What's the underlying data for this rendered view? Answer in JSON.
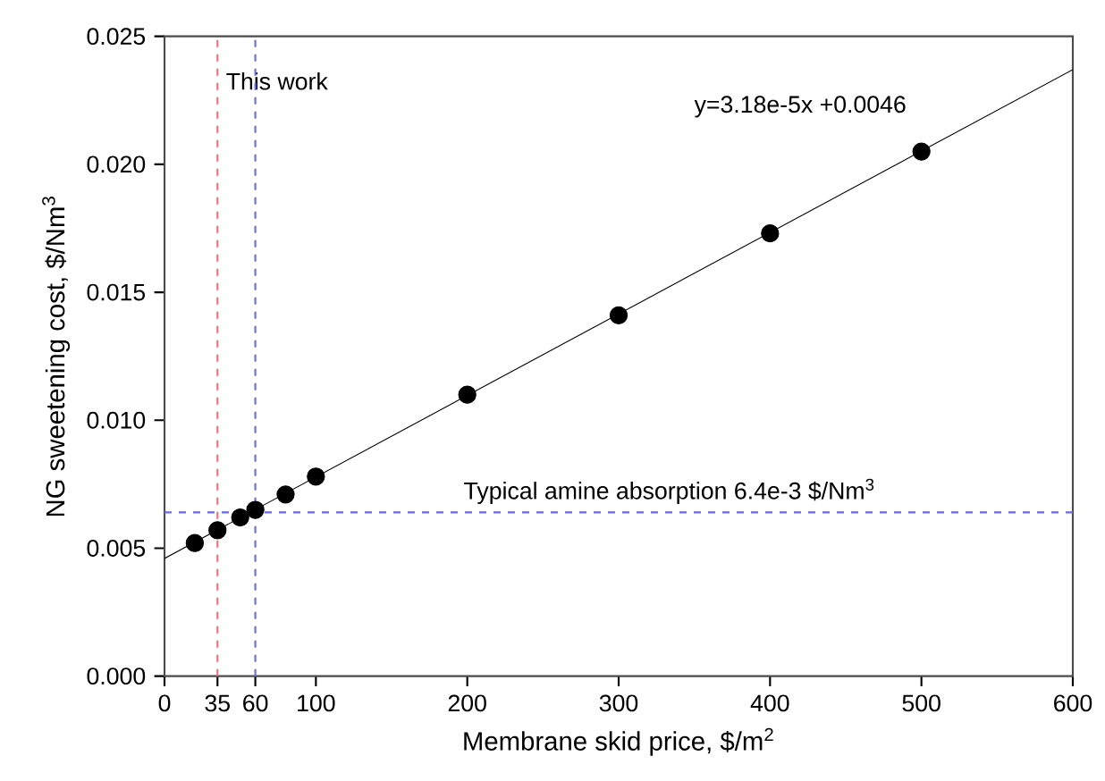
{
  "chart_data": {
    "type": "scatter",
    "xlabel": "Membrane skid price, $/m$^{2}$",
    "ylabel": "NG sweetening cost, $/Nm$^{3}$",
    "xlim": [
      0,
      600
    ],
    "ylim": [
      0,
      0.025
    ],
    "xticks": [
      0,
      35,
      60,
      100,
      200,
      300,
      400,
      500,
      600
    ],
    "yticks": [
      {
        "value": 0,
        "label": "0.000"
      },
      {
        "value": 0.005,
        "label": "0.005"
      },
      {
        "value": 0.01,
        "label": "0.010"
      },
      {
        "value": 0.015,
        "label": "0.015"
      },
      {
        "value": 0.02,
        "label": "0.020"
      },
      {
        "value": 0.025,
        "label": "0.025"
      }
    ],
    "marker": "circle",
    "series": [
      {
        "color": "#000000",
        "x": [
          20,
          35,
          50,
          60,
          80,
          100,
          200,
          300,
          400,
          500
        ],
        "values": [
          0.0052,
          0.0057,
          0.0062,
          0.0065,
          0.0071,
          0.0078,
          0.011,
          0.0141,
          0.0173,
          0.0205
        ]
      },
      {
        "type": "line",
        "marker": "none",
        "color": "#000000",
        "x": [
          0,
          600
        ],
        "values": [
          0.0046,
          0.0237
        ]
      }
    ],
    "ref_lines": [
      {
        "axis": "x",
        "value": 35,
        "label": "This work",
        "color": "#f07080",
        "line_style": "dashed"
      },
      {
        "axis": "y",
        "value": 0.0064,
        "label": "Typical amine absorption 6.4e-3 $/Nm$^{3}$",
        "color": "#6a6ae8",
        "line_style": "dashed"
      },
      {
        "axis": "x",
        "value": 60,
        "color": "#6a6ae8",
        "line_style": "dashed"
      }
    ],
    "annotations": [
      "y=3.18e-5x +0.0046"
    ]
  }
}
